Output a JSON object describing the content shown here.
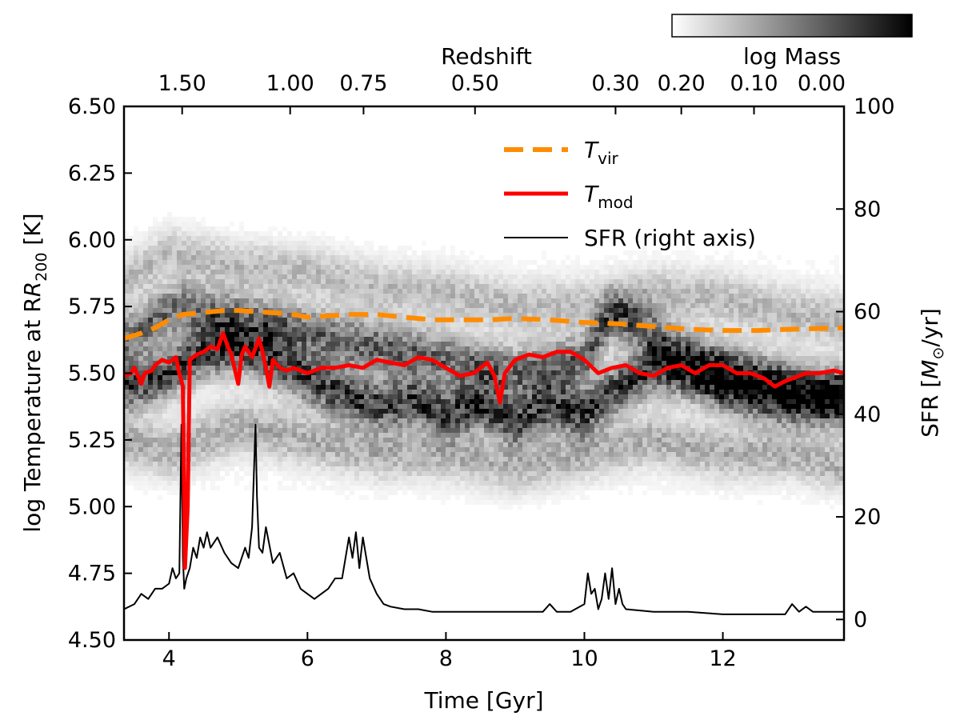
{
  "chart_data": {
    "type": "heatmap",
    "colorbar": {
      "label": "log Mass",
      "cmap": "gray_r",
      "color_low": "#ffffff",
      "color_high": "#000000"
    },
    "x_axis": {
      "label": "Time [Gyr]",
      "range": [
        3.35,
        13.75
      ],
      "ticks": [
        4,
        6,
        8,
        10,
        12
      ],
      "tick_labels": [
        "4",
        "6",
        "8",
        "10",
        "12"
      ]
    },
    "y_axis_left": {
      "label": "log Temperature at R",
      "label_subscript": "200",
      "label_unit": " [K]",
      "range": [
        4.5,
        6.5
      ],
      "ticks": [
        4.5,
        4.75,
        5.0,
        5.25,
        5.5,
        5.75,
        6.0,
        6.25,
        6.5
      ],
      "tick_labels": [
        "4.50",
        "4.75",
        "5.00",
        "5.25",
        "5.50",
        "5.75",
        "6.00",
        "6.25",
        "6.50"
      ]
    },
    "y_axis_right": {
      "label": "SFR [",
      "label_m": "M",
      "label_sub": "⊙",
      "label_unit": "/yr]",
      "range": [
        -4,
        100
      ],
      "ticks": [
        0,
        20,
        40,
        60,
        80,
        100
      ],
      "tick_labels": [
        "0",
        "20",
        "40",
        "60",
        "80",
        "100"
      ]
    },
    "x_axis_top": {
      "label": "Redshift",
      "tick_positions_gyr": [
        4.19,
        5.75,
        6.81,
        8.42,
        10.45,
        11.4,
        12.45,
        13.75
      ],
      "tick_labels": [
        "1.50",
        "1.00",
        "0.75",
        "0.50",
        "0.30",
        "0.20",
        "0.10",
        "0.00"
      ]
    },
    "legend": {
      "placement": "top-right",
      "entries": [
        {
          "series": "T_vir",
          "label": "T",
          "label_sub": "vir",
          "style": "dashed",
          "color": "#ff8c00"
        },
        {
          "series": "T_mod",
          "label": "T",
          "label_sub": "mod",
          "style": "solid",
          "color": "#ff0000"
        },
        {
          "series": "SFR",
          "label": "SFR (right axis)",
          "style": "solid",
          "color": "#000000"
        }
      ]
    },
    "series": [
      {
        "name": "T_vir",
        "axis": "left",
        "color": "#ff8c00",
        "x": [
          3.35,
          3.6,
          3.8,
          4.0,
          4.2,
          4.4,
          4.6,
          4.8,
          5.0,
          5.3,
          5.6,
          5.8,
          6.0,
          6.3,
          6.6,
          7.0,
          7.4,
          7.8,
          8.2,
          8.6,
          9.0,
          9.5,
          10.0,
          10.5,
          11.0,
          11.5,
          12.0,
          12.5,
          13.0,
          13.75
        ],
        "y": [
          5.63,
          5.65,
          5.67,
          5.7,
          5.72,
          5.725,
          5.73,
          5.735,
          5.735,
          5.73,
          5.725,
          5.72,
          5.71,
          5.715,
          5.72,
          5.72,
          5.71,
          5.7,
          5.7,
          5.7,
          5.705,
          5.7,
          5.69,
          5.685,
          5.675,
          5.665,
          5.66,
          5.66,
          5.665,
          5.67
        ]
      },
      {
        "name": "T_mod",
        "axis": "left",
        "color": "#ff0000",
        "x": [
          3.35,
          3.45,
          3.5,
          3.6,
          3.65,
          3.75,
          3.8,
          3.9,
          4.0,
          4.1,
          4.15,
          4.2,
          4.23,
          4.27,
          4.3,
          4.4,
          4.5,
          4.6,
          4.7,
          4.78,
          4.85,
          4.9,
          5.0,
          5.05,
          5.1,
          5.2,
          5.3,
          5.35,
          5.4,
          5.45,
          5.5,
          5.6,
          5.7,
          5.8,
          6.0,
          6.2,
          6.4,
          6.6,
          6.8,
          7.0,
          7.2,
          7.4,
          7.6,
          7.8,
          8.0,
          8.2,
          8.4,
          8.6,
          8.7,
          8.78,
          8.85,
          9.0,
          9.2,
          9.4,
          9.6,
          9.8,
          10.0,
          10.2,
          10.4,
          10.6,
          10.8,
          11.0,
          11.2,
          11.4,
          11.6,
          11.8,
          12.0,
          12.2,
          12.4,
          12.6,
          12.75,
          12.9,
          13.0,
          13.2,
          13.4,
          13.6,
          13.75
        ],
        "y": [
          5.49,
          5.5,
          5.52,
          5.46,
          5.5,
          5.51,
          5.53,
          5.55,
          5.54,
          5.56,
          5.5,
          5.45,
          4.77,
          5.0,
          5.55,
          5.57,
          5.58,
          5.6,
          5.59,
          5.65,
          5.6,
          5.57,
          5.46,
          5.57,
          5.6,
          5.56,
          5.63,
          5.58,
          5.52,
          5.45,
          5.55,
          5.52,
          5.51,
          5.52,
          5.5,
          5.52,
          5.52,
          5.53,
          5.52,
          5.55,
          5.54,
          5.53,
          5.56,
          5.55,
          5.52,
          5.49,
          5.5,
          5.54,
          5.49,
          5.39,
          5.5,
          5.55,
          5.57,
          5.56,
          5.58,
          5.58,
          5.55,
          5.5,
          5.52,
          5.53,
          5.5,
          5.49,
          5.52,
          5.53,
          5.5,
          5.53,
          5.53,
          5.5,
          5.5,
          5.48,
          5.45,
          5.47,
          5.48,
          5.5,
          5.5,
          5.51,
          5.5
        ]
      },
      {
        "name": "SFR",
        "axis": "right",
        "color": "#000000",
        "x": [
          3.35,
          3.5,
          3.6,
          3.7,
          3.8,
          3.9,
          4.0,
          4.05,
          4.1,
          4.15,
          4.18,
          4.2,
          4.22,
          4.25,
          4.3,
          4.35,
          4.4,
          4.45,
          4.5,
          4.55,
          4.6,
          4.7,
          4.8,
          4.9,
          5.0,
          5.1,
          5.15,
          5.2,
          5.25,
          5.27,
          5.3,
          5.35,
          5.4,
          5.5,
          5.6,
          5.7,
          5.8,
          5.9,
          6.0,
          6.1,
          6.2,
          6.3,
          6.4,
          6.5,
          6.6,
          6.65,
          6.7,
          6.75,
          6.8,
          6.85,
          6.9,
          7.0,
          7.1,
          7.2,
          7.4,
          7.6,
          7.8,
          8.0,
          8.5,
          9.0,
          9.4,
          9.5,
          9.6,
          9.8,
          10.0,
          10.05,
          10.1,
          10.15,
          10.2,
          10.25,
          10.3,
          10.35,
          10.4,
          10.45,
          10.5,
          10.55,
          10.6,
          11.0,
          11.5,
          12.0,
          12.5,
          12.9,
          13.0,
          13.1,
          13.2,
          13.3,
          13.5,
          13.75
        ],
        "y": [
          2,
          3,
          5,
          4,
          6,
          6,
          7,
          10,
          8,
          9,
          38,
          12,
          6,
          8,
          10,
          14,
          12,
          16,
          14,
          17,
          14,
          16,
          13,
          11,
          10,
          14,
          12,
          18,
          38,
          24,
          14,
          13,
          18,
          11,
          13,
          8,
          9,
          6,
          5,
          4,
          5,
          6,
          8,
          8,
          16,
          12,
          17,
          10,
          16,
          12,
          8,
          5,
          3,
          2.5,
          2,
          2,
          1.5,
          1.5,
          1.5,
          1.5,
          1.5,
          3,
          1.5,
          1.5,
          3,
          9,
          5,
          6,
          2,
          4,
          9,
          4,
          10,
          3,
          6,
          3,
          2,
          1.5,
          1.5,
          1,
          1,
          1,
          3,
          1.5,
          2.5,
          1.5,
          1.5,
          1.5
        ]
      }
    ],
    "heatmap_bands": [
      {
        "x": [
          3.35,
          4.0,
          4.5,
          5.0,
          5.5,
          6.0,
          6.5,
          7.0,
          7.5,
          8.0,
          8.5,
          9.0,
          9.5,
          10.0,
          10.5,
          11.0,
          11.5,
          12.0,
          12.5,
          13.0,
          13.75
        ],
        "y": [
          5.45,
          5.5,
          5.58,
          5.6,
          5.55,
          5.48,
          5.42,
          5.38,
          5.4,
          5.35,
          5.38,
          5.32,
          5.38,
          5.35,
          5.45,
          5.52,
          5.5,
          5.45,
          5.42,
          5.4,
          5.4
        ],
        "intensity": 0.75
      },
      {
        "x": [
          3.35,
          3.8,
          4.2,
          4.6,
          5.0,
          5.5,
          6.0,
          6.5,
          7.0,
          7.5,
          8.0,
          8.5,
          9.0,
          9.5,
          10.0,
          10.4,
          10.8,
          11.2,
          11.6,
          12.0,
          12.5,
          13.0,
          13.75
        ],
        "y": [
          5.62,
          5.7,
          5.75,
          5.72,
          5.7,
          5.68,
          5.65,
          5.62,
          5.6,
          5.58,
          5.55,
          5.52,
          5.5,
          5.52,
          5.55,
          5.72,
          5.68,
          5.6,
          5.55,
          5.52,
          5.48,
          5.45,
          5.42
        ],
        "intensity": 0.6
      },
      {
        "x": [
          3.35,
          4.0,
          5.0,
          6.0,
          7.0,
          8.0,
          9.0,
          10.0,
          11.0,
          12.0,
          13.0,
          13.75
        ],
        "y": [
          5.25,
          5.2,
          5.3,
          5.25,
          5.2,
          5.2,
          5.15,
          5.2,
          5.25,
          5.2,
          5.2,
          5.15
        ],
        "intensity": 0.3
      },
      {
        "x": [
          3.35,
          4.0,
          5.0,
          6.0,
          7.0,
          8.0,
          9.0,
          10.0,
          11.0,
          12.0,
          13.0,
          13.75
        ],
        "y": [
          5.85,
          5.95,
          5.9,
          5.88,
          5.82,
          5.8,
          5.75,
          5.75,
          5.8,
          5.78,
          5.72,
          5.7
        ],
        "intensity": 0.25
      }
    ]
  }
}
